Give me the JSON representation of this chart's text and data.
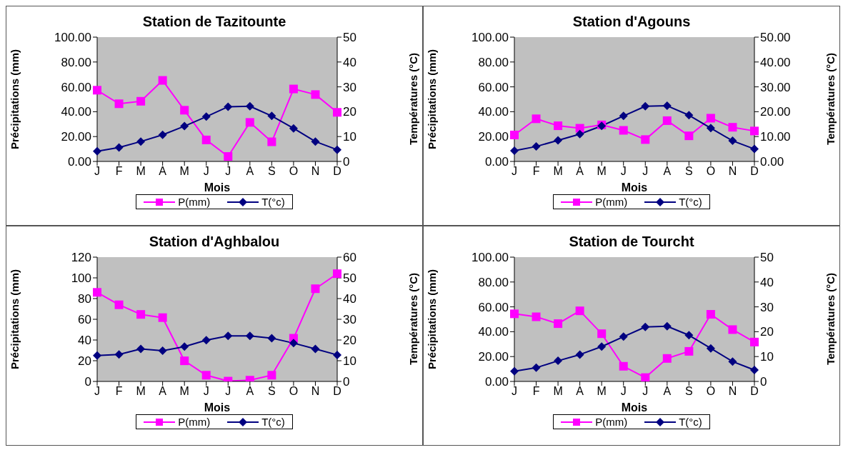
{
  "chart_data": [
    {
      "type": "line",
      "title": "Station de Tazitounte",
      "xlabel": "Mois",
      "ylabel": "Précipitations (mm)",
      "y2label": "Températures (°C)",
      "categories": [
        "J",
        "F",
        "M",
        "A",
        "M",
        "J",
        "J",
        "A",
        "S",
        "O",
        "N",
        "D"
      ],
      "series": [
        {
          "name": "P(mm)",
          "color": "#ff00ff",
          "marker": "square",
          "values": [
            57.3,
            46.4,
            48.4,
            65.2,
            41.2,
            17.3,
            4,
            31.4,
            15.8,
            58.3,
            53.8,
            39.5
          ]
        },
        {
          "name": "T(°c)",
          "color": "#000080",
          "marker": "diamond",
          "axis": "y2",
          "values": [
            4.1,
            5.6,
            8,
            10.7,
            14.2,
            18,
            22,
            22.2,
            18.3,
            13.3,
            8,
            4.7
          ]
        }
      ],
      "ylim": [
        0,
        100
      ],
      "yticks": [
        {
          "value": 0,
          "label": "0.00"
        },
        {
          "value": 20,
          "label": "20.00"
        },
        {
          "value": 40,
          "label": "40.00"
        },
        {
          "value": 60,
          "label": "60.00"
        },
        {
          "value": 80,
          "label": "80.00"
        },
        {
          "value": 100,
          "label": "100.00"
        }
      ],
      "y2lim": [
        0,
        50
      ],
      "y2ticks": [
        0,
        10,
        20,
        30,
        40,
        50
      ],
      "grid": false,
      "legend": "bottom"
    },
    {
      "type": "line",
      "title": "Station d'Agouns",
      "xlabel": "Mois",
      "ylabel": "Précipitations (mm)",
      "y2label": "Températures (°C)",
      "categories": [
        "J",
        "F",
        "M",
        "A",
        "M",
        "J",
        "J",
        "A",
        "S",
        "O",
        "N",
        "D"
      ],
      "series": [
        {
          "name": "P(mm)",
          "color": "#ff00ff",
          "marker": "square",
          "values": [
            21.3,
            34.3,
            28.7,
            26.7,
            29.4,
            25,
            17.6,
            32.8,
            20.6,
            34.8,
            27.5,
            24.5
          ]
        },
        {
          "name": "T(°c)",
          "color": "#000080",
          "marker": "diamond",
          "axis": "y2",
          "values": [
            4.3,
            6,
            8.5,
            11,
            14.3,
            18.3,
            22.2,
            22.4,
            18.6,
            13.4,
            8.3,
            5
          ]
        }
      ],
      "ylim": [
        0,
        100
      ],
      "yticks": [
        {
          "value": 0,
          "label": "0.00"
        },
        {
          "value": 20,
          "label": "20.00"
        },
        {
          "value": 40,
          "label": "40.00"
        },
        {
          "value": 60,
          "label": "60.00"
        },
        {
          "value": 80,
          "label": "80.00"
        },
        {
          "value": 100,
          "label": "100.00"
        }
      ],
      "y2lim": [
        0,
        50
      ],
      "y2ticks": [
        {
          "value": 0,
          "label": "0.00"
        },
        {
          "value": 10,
          "label": "10.00"
        },
        {
          "value": 20,
          "label": "20.00"
        },
        {
          "value": 30,
          "label": "30.00"
        },
        {
          "value": 40,
          "label": "40.00"
        },
        {
          "value": 50,
          "label": "50.00"
        }
      ],
      "grid": false,
      "legend": "bottom"
    },
    {
      "type": "line",
      "title": "Station d'Aghbalou",
      "xlabel": "Mois",
      "ylabel": "Précipitations (mm)",
      "y2label": "Températures (°C)",
      "categories": [
        "J",
        "F",
        "M",
        "A",
        "M",
        "J",
        "J",
        "A",
        "S",
        "O",
        "N",
        "D"
      ],
      "series": [
        {
          "name": "P(mm)",
          "color": "#ff00ff",
          "marker": "square",
          "values": [
            86,
            74,
            64.7,
            61.6,
            19.9,
            6,
            0.3,
            1.2,
            6,
            41.7,
            89.5,
            104
          ]
        },
        {
          "name": "T(°c)",
          "color": "#000080",
          "marker": "diamond",
          "axis": "y2",
          "values": [
            12.5,
            13,
            15.7,
            14.8,
            16.8,
            19.9,
            22,
            22,
            20.9,
            18.5,
            15.7,
            12.8
          ]
        }
      ],
      "ylim": [
        0,
        120
      ],
      "yticks": [
        0,
        20,
        40,
        60,
        80,
        100,
        120
      ],
      "y2lim": [
        0,
        60
      ],
      "y2ticks": [
        0,
        10,
        20,
        30,
        40,
        50,
        60
      ],
      "grid": false,
      "legend": "bottom"
    },
    {
      "type": "line",
      "title": "Station de Tourcht",
      "xlabel": "Mois",
      "ylabel": "Précipitations (mm)",
      "y2label": "Températures (°C)",
      "categories": [
        "J",
        "F",
        "M",
        "A",
        "M",
        "J",
        "J",
        "A",
        "S",
        "O",
        "N",
        "D"
      ],
      "series": [
        {
          "name": "P(mm)",
          "color": "#ff00ff",
          "marker": "square",
          "values": [
            54.4,
            52,
            46.5,
            56.8,
            38.4,
            12.2,
            3.1,
            18.5,
            24.2,
            54,
            41.7,
            31.7
          ]
        },
        {
          "name": "T(°c)",
          "color": "#000080",
          "marker": "diamond",
          "axis": "y2",
          "values": [
            4.1,
            5.5,
            8.3,
            10.8,
            14,
            18,
            21.9,
            22.2,
            18.6,
            13.3,
            8,
            4.6
          ]
        }
      ],
      "ylim": [
        0,
        100
      ],
      "yticks": [
        {
          "value": 0,
          "label": "0.00"
        },
        {
          "value": 20,
          "label": "20.00"
        },
        {
          "value": 40,
          "label": "40.00"
        },
        {
          "value": 60,
          "label": "60.00"
        },
        {
          "value": 80,
          "label": "80.00"
        },
        {
          "value": 100,
          "label": "100.00"
        }
      ],
      "y2lim": [
        0,
        50
      ],
      "y2ticks": [
        0,
        10,
        20,
        30,
        40,
        50
      ],
      "grid": false,
      "legend": "bottom"
    }
  ]
}
